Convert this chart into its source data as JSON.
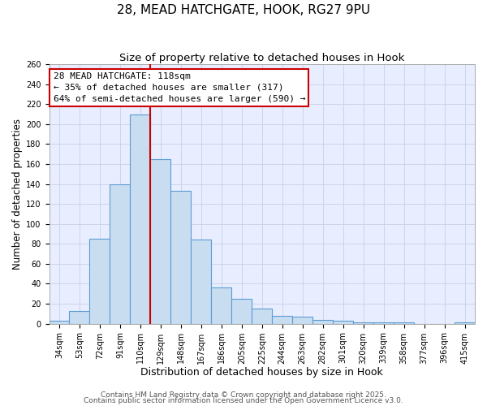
{
  "title": "28, MEAD HATCHGATE, HOOK, RG27 9PU",
  "subtitle": "Size of property relative to detached houses in Hook",
  "xlabel": "Distribution of detached houses by size in Hook",
  "ylabel": "Number of detached properties",
  "bar_labels": [
    "34sqm",
    "53sqm",
    "72sqm",
    "91sqm",
    "110sqm",
    "129sqm",
    "148sqm",
    "167sqm",
    "186sqm",
    "205sqm",
    "225sqm",
    "244sqm",
    "263sqm",
    "282sqm",
    "301sqm",
    "320sqm",
    "339sqm",
    "358sqm",
    "377sqm",
    "396sqm",
    "415sqm"
  ],
  "bar_values": [
    3,
    13,
    85,
    140,
    210,
    165,
    133,
    84,
    36,
    25,
    15,
    8,
    7,
    4,
    3,
    1,
    1,
    1,
    0,
    0,
    1
  ],
  "bar_color": "#c9ddf0",
  "bar_edge_color": "#5b9bd5",
  "background_color": "#e8eeff",
  "grid_color": "#c8d0e8",
  "vline_x_index": 4,
  "vline_color": "#cc0000",
  "annotation_line1": "28 MEAD HATCHGATE: 118sqm",
  "annotation_line2": "← 35% of detached houses are smaller (317)",
  "annotation_line3": "64% of semi-detached houses are larger (590) →",
  "ylim": [
    0,
    260
  ],
  "yticks": [
    0,
    20,
    40,
    60,
    80,
    100,
    120,
    140,
    160,
    180,
    200,
    220,
    240,
    260
  ],
  "footer1": "Contains HM Land Registry data © Crown copyright and database right 2025.",
  "footer2": "Contains public sector information licensed under the Open Government Licence v3.0.",
  "title_fontsize": 11,
  "subtitle_fontsize": 9.5,
  "xlabel_fontsize": 9,
  "ylabel_fontsize": 8.5,
  "tick_fontsize": 7,
  "annotation_fontsize": 8,
  "footer_fontsize": 6.5
}
